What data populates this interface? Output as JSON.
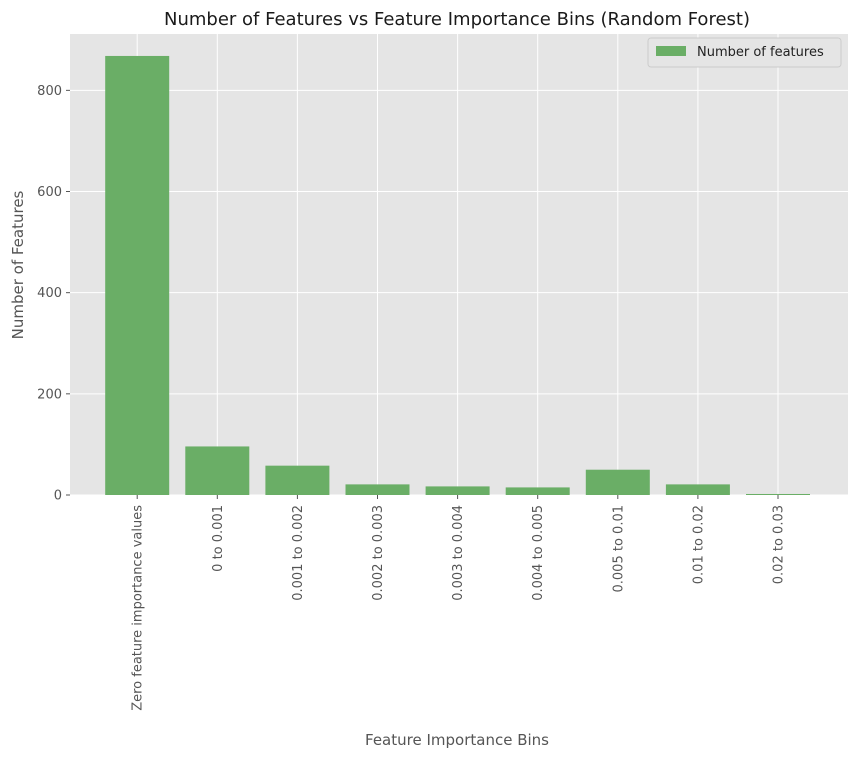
{
  "chart_data": {
    "type": "bar",
    "title": "Number of Features vs Feature Importance Bins (Random Forest)",
    "xlabel": "Feature Importance Bins",
    "ylabel": "Number of Features",
    "categories": [
      "Zero feature importance values",
      "0 to 0.001",
      "0.001 to 0.002",
      "0.002 to 0.003",
      "0.003 to 0.004",
      "0.004 to 0.005",
      "0.005 to 0.01",
      "0.01 to 0.02",
      "0.02 to 0.03"
    ],
    "series": [
      {
        "name": "Number of features",
        "values": [
          868,
          96,
          58,
          21,
          17,
          15,
          50,
          21,
          2
        ],
        "color": "#6aae66"
      }
    ],
    "yticks": [
      0,
      200,
      400,
      600,
      800
    ],
    "ylim": [
      0,
      911.4
    ],
    "grid": true,
    "legend": "top-right",
    "colors": {
      "plot_background": "#e5e5e5",
      "grid": "#ffffff",
      "text": "#555555",
      "title": "#1a1a1a"
    }
  }
}
